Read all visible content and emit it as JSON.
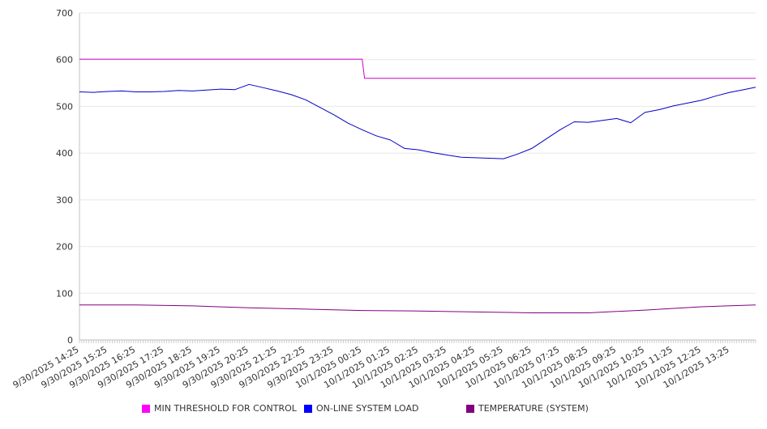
{
  "chart_data": {
    "type": "line",
    "title": "",
    "xlabel": "",
    "ylabel": "",
    "ylim": [
      0,
      700
    ],
    "yticks": [
      0,
      100,
      200,
      300,
      400,
      500,
      600,
      700
    ],
    "grid": true,
    "legend_position": "bottom",
    "x_tick_labels": [
      "9/30/2025 14:25",
      "9/30/2025 15:25",
      "9/30/2025 16:25",
      "9/30/2025 17:25",
      "9/30/2025 18:25",
      "9/30/2025 19:25",
      "9/30/2025 20:25",
      "9/30/2025 21:25",
      "9/30/2025 22:25",
      "9/30/2025 23:25",
      "10/1/2025 00:25",
      "10/1/2025 01:25",
      "10/1/2025 02:25",
      "10/1/2025 03:25",
      "10/1/2025 04:25",
      "10/1/2025 05:25",
      "10/1/2025 06:25",
      "10/1/2025 07:25",
      "10/1/2025 08:25",
      "10/1/2025 09:25",
      "10/1/2025 10:25",
      "10/1/2025 11:25",
      "10/1/2025 12:25",
      "10/1/2025 13:25"
    ],
    "x_end": "10/1/2025 14:20",
    "series": [
      {
        "name": "MIN THRESHOLD FOR CONTROL",
        "color": "#cc00cc",
        "x": [
          "9/30/2025 14:25",
          "10/1/2025 00:25",
          "10/1/2025 00:30",
          "10/1/2025 14:20"
        ],
        "values": [
          601,
          601,
          560,
          560
        ]
      },
      {
        "name": "ON-LINE SYSTEM LOAD",
        "color": "#0000cc",
        "x": [
          "9/30/2025 14:25",
          "9/30/2025 14:55",
          "9/30/2025 15:25",
          "9/30/2025 15:55",
          "9/30/2025 16:25",
          "9/30/2025 16:55",
          "9/30/2025 17:25",
          "9/30/2025 17:55",
          "9/30/2025 18:25",
          "9/30/2025 18:55",
          "9/30/2025 19:25",
          "9/30/2025 19:55",
          "9/30/2025 20:25",
          "9/30/2025 20:55",
          "9/30/2025 21:25",
          "9/30/2025 21:55",
          "9/30/2025 22:25",
          "9/30/2025 22:55",
          "9/30/2025 23:25",
          "9/30/2025 23:55",
          "10/1/2025 00:25",
          "10/1/2025 00:55",
          "10/1/2025 01:25",
          "10/1/2025 01:55",
          "10/1/2025 02:25",
          "10/1/2025 02:55",
          "10/1/2025 03:25",
          "10/1/2025 03:55",
          "10/1/2025 04:25",
          "10/1/2025 04:55",
          "10/1/2025 05:25",
          "10/1/2025 05:55",
          "10/1/2025 06:25",
          "10/1/2025 06:55",
          "10/1/2025 07:25",
          "10/1/2025 07:55",
          "10/1/2025 08:25",
          "10/1/2025 08:55",
          "10/1/2025 09:25",
          "10/1/2025 09:55",
          "10/1/2025 10:25",
          "10/1/2025 10:55",
          "10/1/2025 11:25",
          "10/1/2025 11:55",
          "10/1/2025 12:25",
          "10/1/2025 12:55",
          "10/1/2025 13:25",
          "10/1/2025 13:55",
          "10/1/2025 14:20"
        ],
        "values": [
          531,
          530,
          532,
          533,
          531,
          531,
          532,
          534,
          533,
          535,
          537,
          536,
          547,
          540,
          533,
          525,
          514,
          498,
          482,
          464,
          450,
          437,
          428,
          410,
          407,
          401,
          396,
          391,
          390,
          389,
          388,
          398,
          410,
          430,
          450,
          467,
          466,
          470,
          474,
          465,
          487,
          493,
          501,
          507,
          513,
          522,
          530,
          536,
          541
        ]
      },
      {
        "name": "TEMPERATURE (SYSTEM)",
        "color": "#800080",
        "x": [
          "9/30/2025 14:25",
          "9/30/2025 16:25",
          "9/30/2025 18:25",
          "9/30/2025 20:25",
          "9/30/2025 22:25",
          "10/1/2025 00:25",
          "10/1/2025 02:25",
          "10/1/2025 04:25",
          "10/1/2025 06:25",
          "10/1/2025 08:25",
          "10/1/2025 10:25",
          "10/1/2025 12:25",
          "10/1/2025 14:20"
        ],
        "values": [
          75,
          75,
          73,
          69,
          66,
          63,
          62,
          60,
          58,
          58,
          64,
          71,
          75
        ]
      }
    ]
  }
}
